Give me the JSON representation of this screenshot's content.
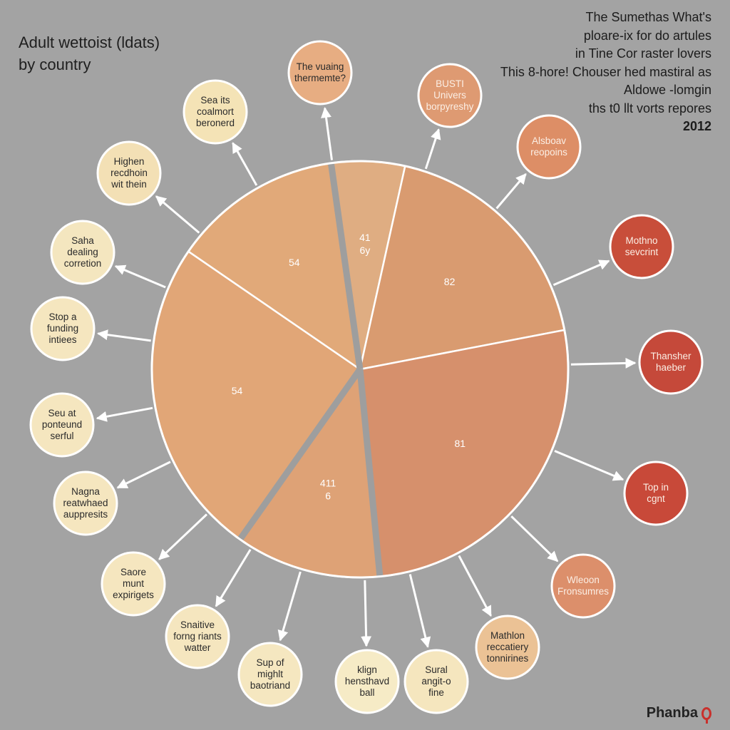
{
  "chart_title": {
    "line1": "Adult wettoist (ldats)",
    "line2": "by country"
  },
  "note": {
    "line1": "The Sumethas What's",
    "line2": "ploare-ix for do artules",
    "line3": "in Tine Cor raster lovers",
    "line4": "This 8-hore! Chouser hed mastiral as",
    "line5": "Aldowe -lomgin",
    "line6": "ths t0 llt vorts repores",
    "year": "2012"
  },
  "brand": {
    "name": "Phanba",
    "icon": "pin-icon"
  },
  "chart_data": {
    "type": "pie",
    "slices": [
      {
        "label": "41 6y",
        "share": 5.7,
        "color": "#dfad82"
      },
      {
        "label": "82",
        "share": 18.5,
        "color": "#d99b70"
      },
      {
        "label": "81",
        "share": 26.5,
        "color": "#d6906c"
      },
      {
        "label": "411 6",
        "share": 11.3,
        "color": "#dea276"
      },
      {
        "label": "54",
        "share": 24.8,
        "color": "#e1a677"
      },
      {
        "label": "54",
        "share": 13.2,
        "color": "#e1a979"
      }
    ],
    "callouts": [
      {
        "text": "Sea its\ncoalmort\nberonerd",
        "color": "#f4e3b6"
      },
      {
        "text": "The vuaing\nthermemte?",
        "color": "#e7ad82"
      },
      {
        "text": "BUSTI\nUnivers\nborpyreshy",
        "color": "#de9a72"
      },
      {
        "text": "Alsboav\nreopoins",
        "color": "#dd8e66"
      },
      {
        "text": "Mothno\nsevcrint",
        "color": "#c84e3a"
      },
      {
        "text": "Thansher\nhaeber",
        "color": "#c5493a"
      },
      {
        "text": "Top in\ncgnt",
        "color": "#c84939"
      },
      {
        "text": "Wleoon\nFronsumres",
        "color": "#dc8f6b"
      },
      {
        "text": "Mathlon\nreccatiery\ntonnirines",
        "color": "#ebc295"
      },
      {
        "text": "Sural\nangit-o\nfine",
        "color": "#f5e6be"
      },
      {
        "text": "klign\nhensthavd\nball",
        "color": "#f6ebc6"
      },
      {
        "text": "Sup of\nmighlt\nbaotriand",
        "color": "#f5e7c0"
      },
      {
        "text": "Snaitive\nforng riants\nwatter",
        "color": "#f5e6bf"
      },
      {
        "text": "Saore\nmunt\nexpirigets",
        "color": "#f5e6bf"
      },
      {
        "text": "Nagna\nreatwhaed\nauppresits",
        "color": "#f5e6bf"
      },
      {
        "text": "Seu at\nponteund\nserful",
        "color": "#f5e6bf"
      },
      {
        "text": "Stop a\nfunding\nintiees",
        "color": "#f5e6bf"
      },
      {
        "text": "Saha\ndealing\ncorretion",
        "color": "#f4e6bf"
      },
      {
        "text": "Highen\nrecdhoin\nwit thein",
        "color": "#f3e0b5"
      }
    ]
  }
}
